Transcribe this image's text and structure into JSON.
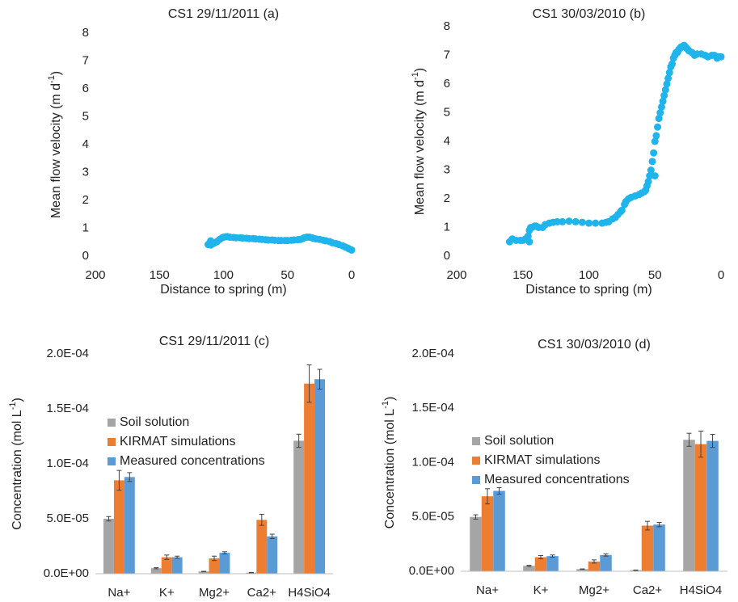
{
  "chart_data": [
    {
      "type": "scatter",
      "title": "CS1 29/11/2011  (a)",
      "xlabel": "Distance to spring (m)",
      "ylabel": [
        "Mean flow velocity (m d",
        "-1",
        ")"
      ],
      "color": "#1fb4ec",
      "xlim": [
        200,
        0
      ],
      "ylim": [
        0,
        8
      ],
      "xticks": [
        200,
        150,
        100,
        50,
        0
      ],
      "yticks": [
        0,
        1,
        2,
        3,
        4,
        5,
        6,
        7,
        8
      ],
      "x": [
        112,
        111,
        110,
        110,
        108,
        106,
        105,
        103,
        101,
        100,
        98,
        97,
        95,
        92,
        90,
        87,
        85,
        82,
        80,
        77,
        75,
        72,
        70,
        67,
        65,
        62,
        60,
        57,
        55,
        52,
        50,
        47,
        45,
        42,
        40,
        38,
        37,
        35,
        33,
        31,
        30,
        28,
        25,
        22,
        20,
        17,
        15,
        12,
        10,
        7,
        5,
        3,
        2,
        0
      ],
      "values": [
        0.42,
        0.45,
        0.4,
        0.55,
        0.45,
        0.5,
        0.52,
        0.6,
        0.66,
        0.68,
        0.7,
        0.7,
        0.68,
        0.67,
        0.66,
        0.66,
        0.65,
        0.64,
        0.63,
        0.63,
        0.62,
        0.61,
        0.6,
        0.59,
        0.58,
        0.58,
        0.57,
        0.56,
        0.56,
        0.56,
        0.56,
        0.57,
        0.58,
        0.59,
        0.6,
        0.63,
        0.66,
        0.68,
        0.68,
        0.66,
        0.64,
        0.62,
        0.6,
        0.57,
        0.55,
        0.52,
        0.48,
        0.45,
        0.42,
        0.37,
        0.33,
        0.29,
        0.26,
        0.22
      ]
    },
    {
      "type": "scatter",
      "title": "CS1 30/03/2010  (b)",
      "xlabel": "Distance to spring (m)",
      "ylabel": [
        "Mean flow velocity (m d",
        "-1",
        ")"
      ],
      "color": "#1fb4ec",
      "xlim": [
        200,
        0
      ],
      "ylim": [
        0,
        8
      ],
      "xticks": [
        200,
        150,
        100,
        50,
        0
      ],
      "yticks": [
        0,
        1,
        2,
        3,
        4,
        5,
        6,
        7,
        8
      ],
      "x": [
        160,
        158,
        155,
        152,
        150,
        148,
        147,
        146,
        145,
        145,
        144,
        143,
        141,
        140,
        138,
        135,
        133,
        130,
        127,
        124,
        120,
        115,
        110,
        105,
        100,
        95,
        90,
        87,
        85,
        82,
        80,
        78,
        76,
        75,
        73,
        72,
        70,
        68,
        65,
        62,
        60,
        58,
        57,
        56,
        55,
        54,
        53,
        52,
        51,
        50,
        50,
        49,
        48,
        47,
        46,
        45,
        44,
        43,
        42,
        41,
        40,
        39,
        38,
        37,
        36,
        35,
        34,
        33,
        32,
        31,
        30,
        29,
        28,
        27,
        26,
        25,
        24,
        22,
        20,
        18,
        15,
        12,
        10,
        7,
        5,
        3,
        2,
        0
      ],
      "values": [
        0.5,
        0.6,
        0.55,
        0.55,
        0.55,
        0.6,
        0.6,
        0.7,
        0.5,
        0.9,
        1.0,
        1.0,
        1.05,
        1.05,
        1.0,
        1.0,
        1.1,
        1.15,
        1.18,
        1.2,
        1.2,
        1.22,
        1.2,
        1.18,
        1.15,
        1.15,
        1.15,
        1.18,
        1.2,
        1.3,
        1.35,
        1.45,
        1.55,
        1.6,
        1.8,
        1.9,
        2.0,
        2.05,
        2.1,
        2.15,
        2.2,
        2.25,
        2.3,
        2.45,
        2.6,
        2.8,
        3.0,
        3.3,
        3.6,
        4.0,
        2.8,
        4.2,
        4.5,
        4.8,
        5.0,
        5.2,
        5.4,
        5.6,
        5.8,
        6.0,
        6.2,
        6.4,
        6.6,
        6.7,
        6.9,
        7.0,
        7.1,
        7.1,
        7.2,
        7.25,
        7.3,
        7.3,
        7.35,
        7.3,
        7.25,
        7.2,
        7.15,
        7.1,
        7.0,
        7.05,
        7.05,
        7.0,
        6.95,
        7.0,
        7.0,
        6.9,
        6.95,
        6.95
      ]
    },
    {
      "type": "bar",
      "title": "CS1 29/11/2011  (c)",
      "ylabel": [
        "Concentration (mol L",
        "-1",
        ")"
      ],
      "categories": [
        "Na+",
        "K+",
        "Mg2+",
        "Ca2+",
        "H4SiO4"
      ],
      "ylim": [
        0,
        0.0002
      ],
      "yticks": [
        {
          "value": 0,
          "label": "0.0E+00"
        },
        {
          "value": 5e-05,
          "label": "5.0E-05"
        },
        {
          "value": 0.0001,
          "label": "1.0E-04"
        },
        {
          "value": 0.00015,
          "label": "1.5E-04"
        },
        {
          "value": 0.0002,
          "label": "2.0E-04"
        }
      ],
      "series": [
        {
          "name": "Soil solution",
          "color": "#a5a5a5",
          "values": [
            5e-05,
            5e-06,
            2e-06,
            1e-06,
            0.000121
          ],
          "errors": [
            2e-06,
            5e-07,
            2e-07,
            2e-07,
            6e-06
          ]
        },
        {
          "name": "KIRMAT simulations",
          "color": "#ed7d31",
          "values": [
            8.5e-05,
            1.5e-05,
            1.4e-05,
            4.9e-05,
            0.000173
          ],
          "errors": [
            9e-06,
            2e-06,
            2e-06,
            5e-06,
            1.7e-05
          ]
        },
        {
          "name": "Measured concentrations",
          "color": "#5b9bd5",
          "values": [
            8.8e-05,
            1.5e-05,
            1.9e-05,
            3.4e-05,
            0.000177
          ],
          "errors": [
            4e-06,
            1e-06,
            1e-06,
            2e-06,
            9e-06
          ]
        }
      ]
    },
    {
      "type": "bar",
      "title": "CS1 30/03/2010  (d)",
      "ylabel": [
        "Concentration (mol L",
        "-1",
        ")"
      ],
      "categories": [
        "Na+",
        "K+",
        "Mg2+",
        "Ca2+",
        "H4SiO4"
      ],
      "ylim": [
        0,
        0.0002
      ],
      "yticks": [
        {
          "value": 0,
          "label": "0.0E+00"
        },
        {
          "value": 5e-05,
          "label": "5.0E-05"
        },
        {
          "value": 0.0001,
          "label": "1.0E-04"
        },
        {
          "value": 0.00015,
          "label": "1.5E-04"
        },
        {
          "value": 0.0002,
          "label": "2.0E-04"
        }
      ],
      "series": [
        {
          "name": "Soil solution",
          "color": "#a5a5a5",
          "values": [
            5e-05,
            5e-06,
            2e-06,
            1e-06,
            0.000121
          ],
          "errors": [
            2e-06,
            5e-07,
            2e-07,
            2e-07,
            6e-06
          ]
        },
        {
          "name": "KIRMAT simulations",
          "color": "#ed7d31",
          "values": [
            6.9e-05,
            1.3e-05,
            9e-06,
            4.2e-05,
            0.000117
          ],
          "errors": [
            7e-06,
            1.5e-06,
            1.5e-06,
            4e-06,
            1.2e-05
          ]
        },
        {
          "name": "Measured concentrations",
          "color": "#5b9bd5",
          "values": [
            7.4e-05,
            1.4e-05,
            1.5e-05,
            4.3e-05,
            0.00012
          ],
          "errors": [
            3e-06,
            1e-06,
            1e-06,
            2e-06,
            6e-06
          ]
        }
      ]
    }
  ]
}
